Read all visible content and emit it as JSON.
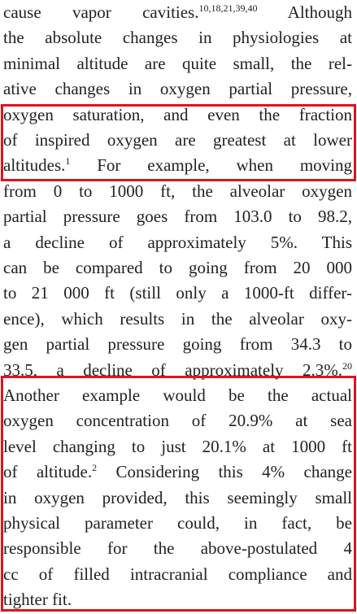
{
  "lines": [
    {
      "parts": [
        {
          "text": "cause vapor cavities."
        },
        {
          "sup": "10,18,21,39,40"
        },
        {
          "text": " Although"
        }
      ]
    },
    {
      "parts": [
        {
          "text": "the absolute changes in physiologies at"
        }
      ]
    },
    {
      "parts": [
        {
          "text": "minimal altitude are quite small, the rel-"
        }
      ]
    },
    {
      "parts": [
        {
          "text": "ative changes in oxygen partial pressure,"
        }
      ]
    },
    {
      "parts": [
        {
          "text": "oxygen saturation, and even the fraction"
        }
      ]
    },
    {
      "parts": [
        {
          "text": "of inspired oxygen are greatest at lower"
        }
      ]
    },
    {
      "parts": [
        {
          "text": "altitudes."
        },
        {
          "sup": "1"
        },
        {
          "text": " For example, when moving"
        }
      ]
    },
    {
      "parts": [
        {
          "text": "from 0 to 1000 ft, the alveolar oxygen"
        }
      ]
    },
    {
      "parts": [
        {
          "text": "partial pressure goes from 103.0 to 98.2,"
        }
      ]
    },
    {
      "parts": [
        {
          "text": "a decline of approximately 5%. This"
        }
      ]
    },
    {
      "parts": [
        {
          "text": "can be compared to going from 20 000"
        }
      ]
    },
    {
      "parts": [
        {
          "text": "to 21 000 ft (still only a 1000-ft differ-"
        }
      ]
    },
    {
      "parts": [
        {
          "text": "ence), which results in the alveolar oxy-"
        }
      ]
    },
    {
      "parts": [
        {
          "text": "gen partial pressure going from 34.3 to"
        }
      ]
    },
    {
      "parts": [
        {
          "text": "33.5, a decline of approximately 2.3%."
        },
        {
          "sup": "20"
        }
      ]
    },
    {
      "parts": [
        {
          "text": "Another example would be the actual"
        }
      ]
    },
    {
      "parts": [
        {
          "text": "oxygen concentration of 20.9% at sea"
        }
      ]
    },
    {
      "parts": [
        {
          "text": "level changing to just 20.1% at 1000 ft"
        }
      ]
    },
    {
      "parts": [
        {
          "text": "of altitude."
        },
        {
          "sup": "2"
        },
        {
          "text": " Considering this 4% change"
        }
      ]
    },
    {
      "parts": [
        {
          "text": "in oxygen provided, this seemingly small"
        }
      ]
    },
    {
      "parts": [
        {
          "text": "physical parameter could, in fact, be"
        }
      ]
    },
    {
      "parts": [
        {
          "text": "responsible for the above-postulated 4"
        }
      ]
    },
    {
      "parts": [
        {
          "text": "cc of filled intracranial compliance and"
        }
      ]
    },
    {
      "parts": [
        {
          "text": "tighter fit."
        }
      ]
    }
  ]
}
